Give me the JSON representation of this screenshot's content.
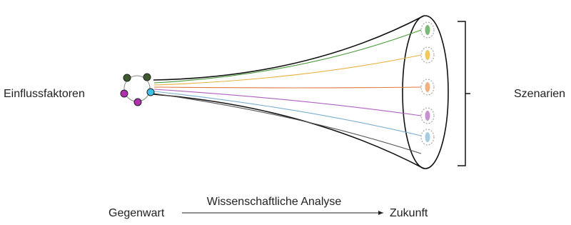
{
  "labels": {
    "left": "Einflussfaktoren",
    "right": "Szenarien"
  },
  "timeline": {
    "start": "Gegenwart",
    "process": "Wissenschaftliche Analyse",
    "end": "Zukunft"
  }
}
